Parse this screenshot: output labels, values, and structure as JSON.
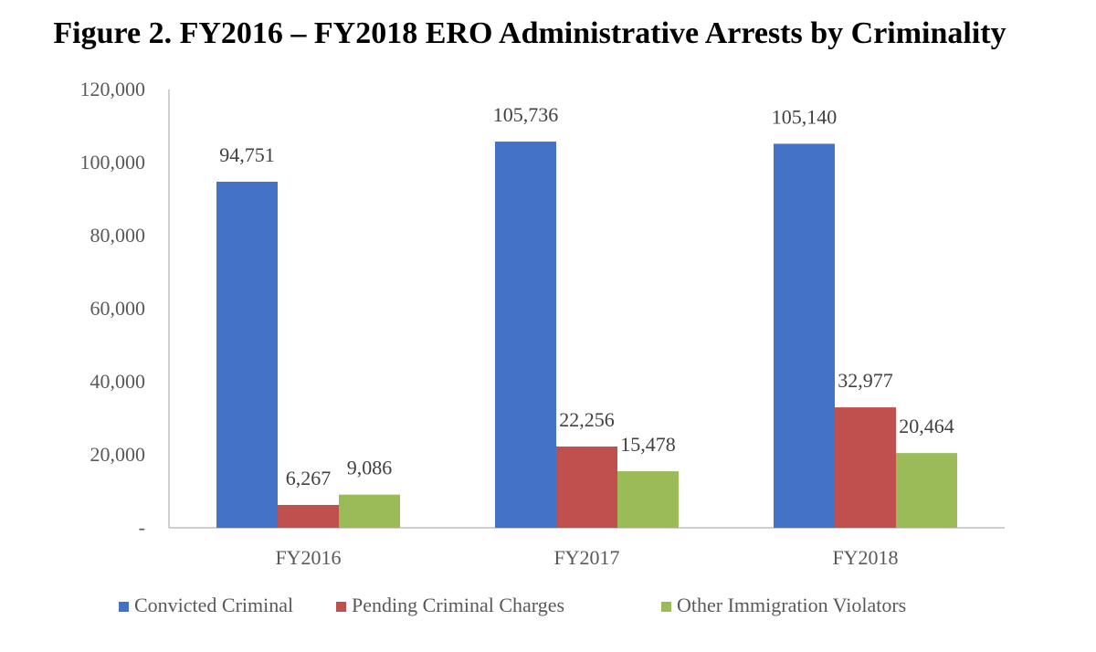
{
  "chart_data": {
    "type": "bar",
    "title": "Figure 2. FY2016 – FY2018 ERO Administrative Arrests by Criminality",
    "categories": [
      "FY2016",
      "FY2017",
      "FY2018"
    ],
    "series": [
      {
        "name": "Convicted Criminal",
        "color": "#4472C4",
        "values": [
          94751,
          105736,
          105140
        ],
        "labels": [
          "94,751",
          "105,736",
          "105,140"
        ]
      },
      {
        "name": "Pending Criminal Charges",
        "color": "#C0504D",
        "values": [
          6267,
          22256,
          32977
        ],
        "labels": [
          "6,267",
          "22,256",
          "32,977"
        ]
      },
      {
        "name": "Other Immigration Violators",
        "color": "#9BBB59",
        "values": [
          9086,
          15478,
          20464
        ],
        "labels": [
          "9,086",
          "15,478",
          "20,464"
        ]
      }
    ],
    "ylim": [
      0,
      120000
    ],
    "yticks": [
      0,
      20000,
      40000,
      60000,
      80000,
      100000,
      120000
    ],
    "ytick_labels": [
      "-",
      "20,000",
      "40,000",
      "60,000",
      "80,000",
      "100,000",
      "120,000"
    ],
    "grid": false,
    "legend_position": "bottom",
    "xlabel": "",
    "ylabel": ""
  }
}
